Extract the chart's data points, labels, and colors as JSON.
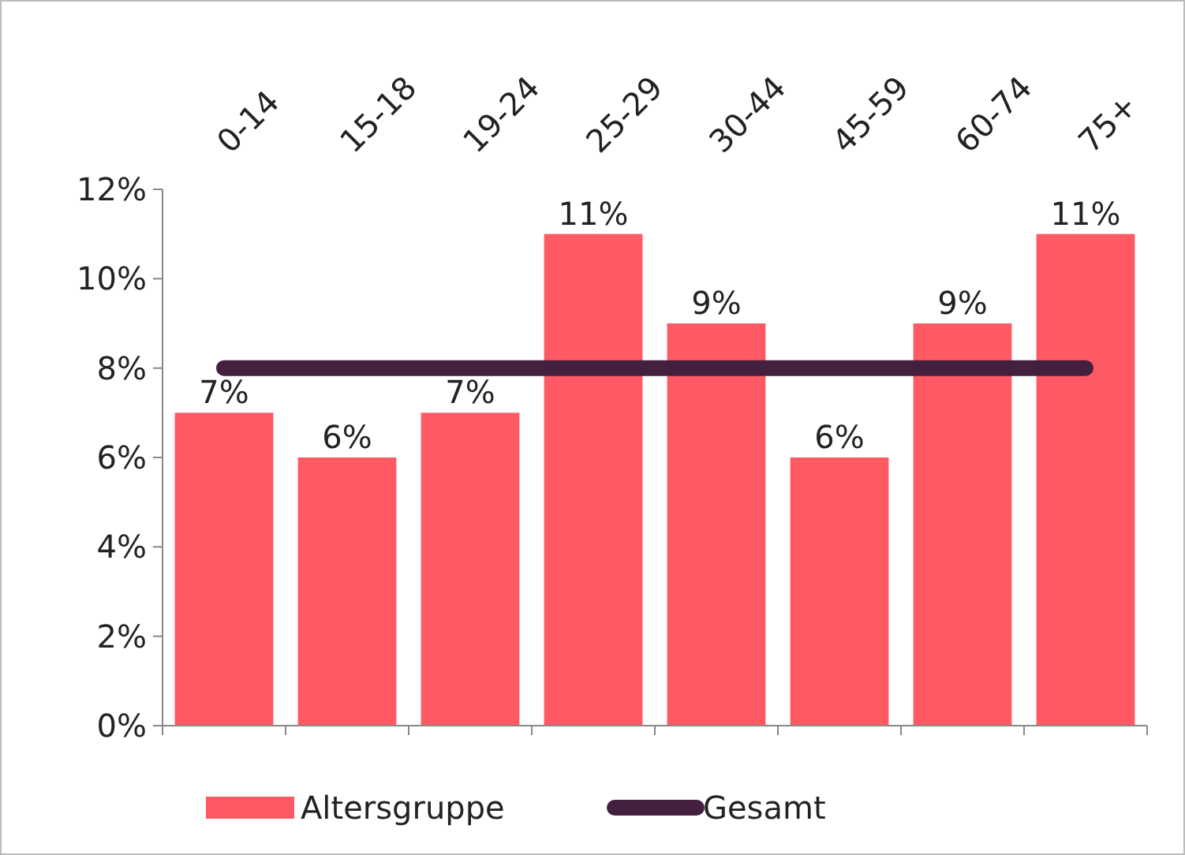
{
  "chart_data": {
    "type": "bar",
    "categories": [
      "0-14",
      "15-18",
      "19-24",
      "25-29",
      "30-44",
      "45-59",
      "60-74",
      "75+"
    ],
    "series": [
      {
        "name": "Altersgruppe",
        "color": "#ff5a64",
        "values": [
          7,
          6,
          7,
          11,
          9,
          6,
          9,
          11
        ],
        "value_labels": [
          "7%",
          "6%",
          "7%",
          "11%",
          "9%",
          "6%",
          "9%",
          "11%"
        ]
      },
      {
        "name": "Gesamt",
        "type": "line",
        "color": "#44203f",
        "values": [
          8,
          8,
          8,
          8,
          8,
          8,
          8,
          8
        ]
      }
    ],
    "ylim": [
      0,
      12
    ],
    "yticks": [
      {
        "value": 0,
        "label": "0%"
      },
      {
        "value": 2,
        "label": "2%"
      },
      {
        "value": 4,
        "label": "4%"
      },
      {
        "value": 6,
        "label": "6%"
      },
      {
        "value": 8,
        "label": "8%"
      },
      {
        "value": 10,
        "label": "10%"
      },
      {
        "value": 12,
        "label": "12%"
      }
    ],
    "grid": false,
    "legend": "bottom"
  }
}
